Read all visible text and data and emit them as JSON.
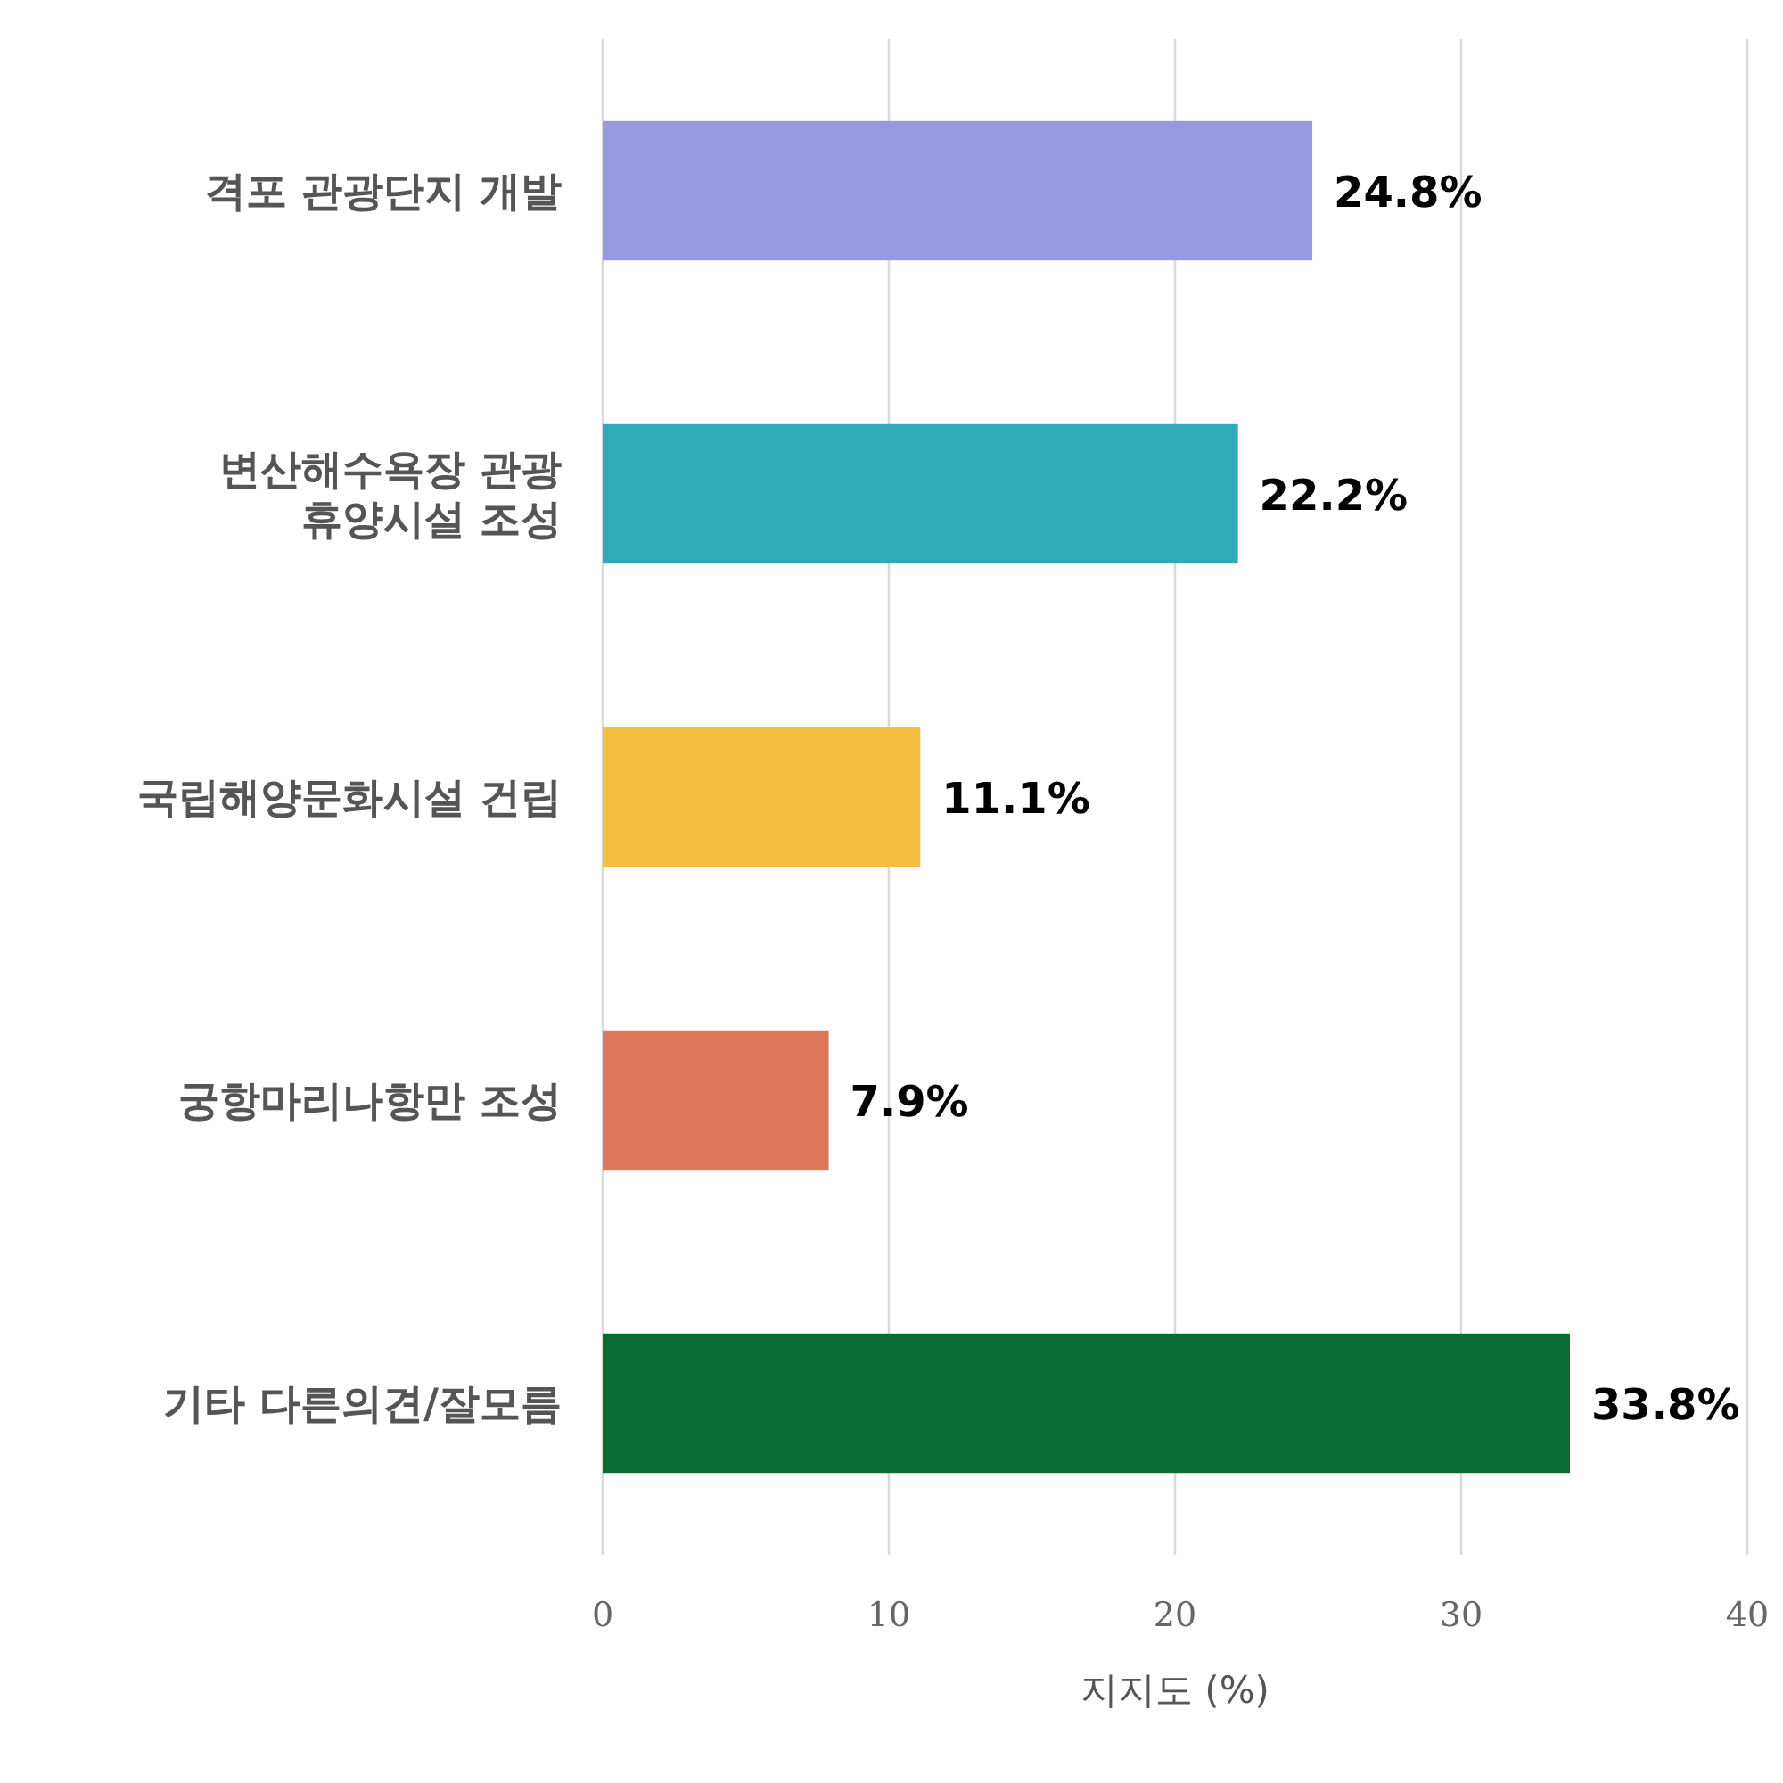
{
  "chart_data": {
    "type": "bar",
    "orientation": "horizontal",
    "categories": [
      "격포 관광단지 개발",
      "변산해수욕장 관광\n휴양시설 조성",
      "국립해양문화시설 건립",
      "궁항마리나항만 조성",
      "기타 다른의견/잘모름"
    ],
    "values": [
      24.8,
      22.2,
      11.1,
      7.9,
      33.8
    ],
    "colors": [
      "#9999e0",
      "#30aab8",
      "#f5be40",
      "#dd795a",
      "#0a6a32"
    ],
    "value_labels": [
      "24.8%",
      "22.2%",
      "11.1%",
      "7.9%",
      "33.8%"
    ],
    "xlim": [
      0,
      40
    ],
    "xticks": [
      0,
      10,
      20,
      30,
      40
    ],
    "xlabel": "지지도 (%)",
    "grid": "x"
  }
}
